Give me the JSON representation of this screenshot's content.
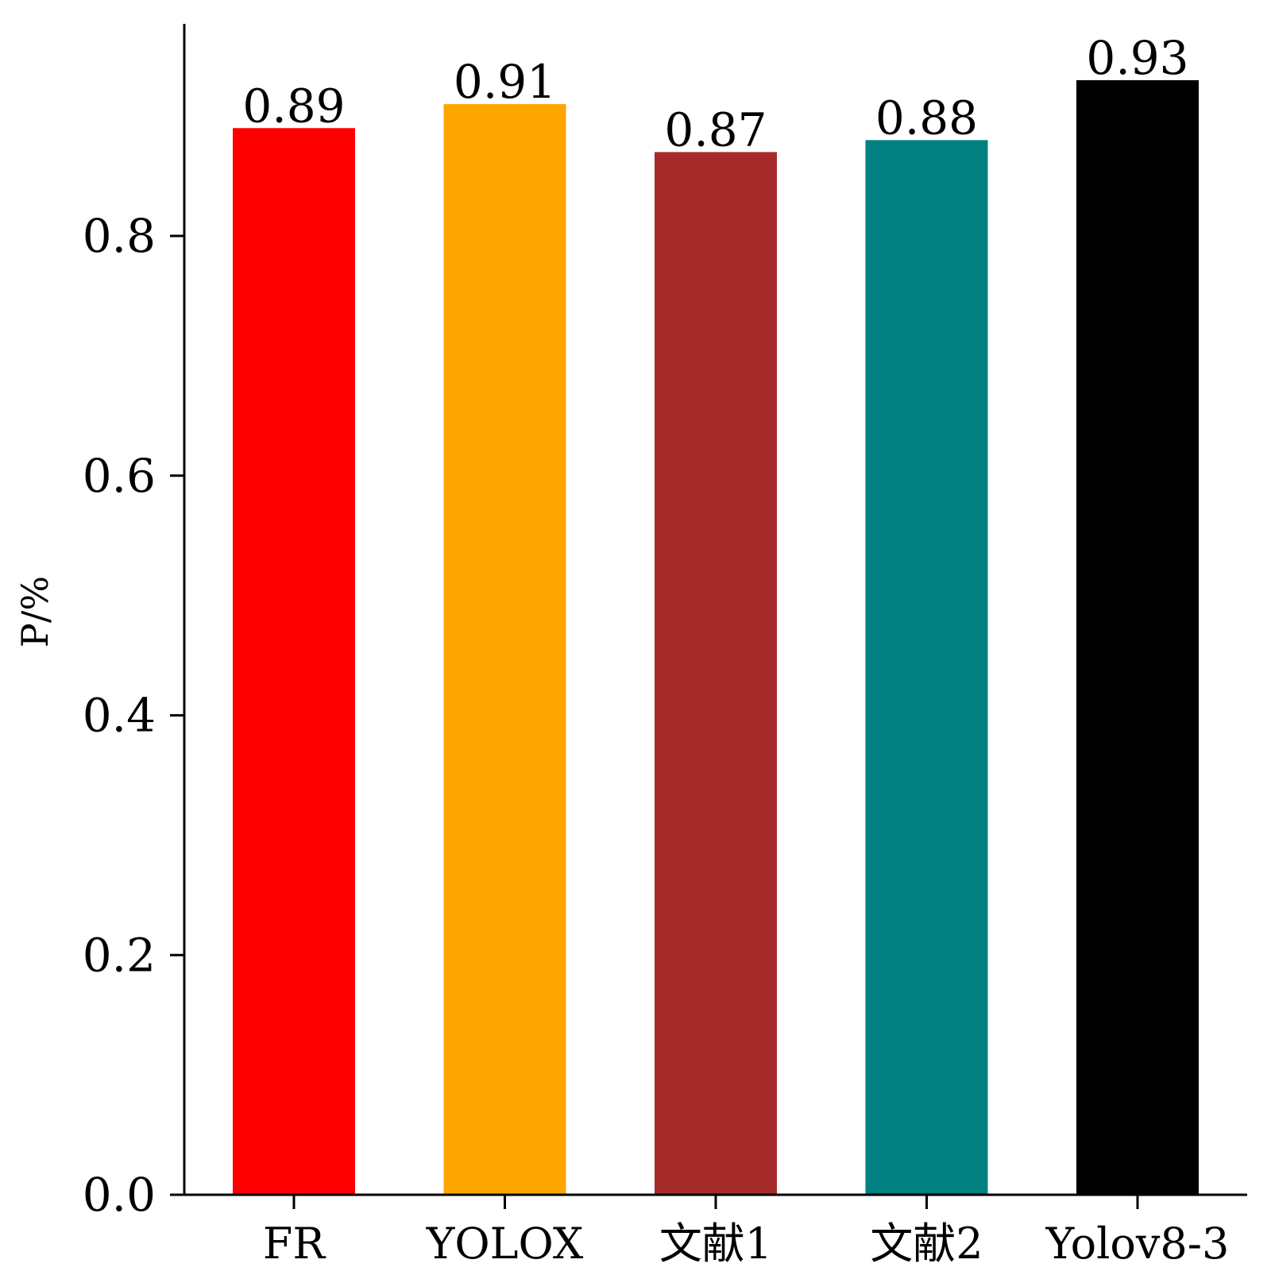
{
  "chart_data": {
    "type": "bar",
    "title": "",
    "xlabel": "",
    "ylabel": "P/%",
    "ylim": [
      0,
      0.977
    ],
    "yticks": [
      0.0,
      0.2,
      0.4,
      0.6,
      0.8
    ],
    "ytick_labels": [
      "0.0",
      "0.2",
      "0.4",
      "0.6",
      "0.8"
    ],
    "categories": [
      "FR",
      "YOLOX",
      "文献1",
      "文献2",
      "Yolov8-3"
    ],
    "values": [
      0.89,
      0.91,
      0.87,
      0.88,
      0.93
    ],
    "value_labels": [
      "0.89",
      "0.91",
      "0.87",
      "0.88",
      "0.93"
    ],
    "colors": [
      "#ff0000",
      "#ffa500",
      "#a52a2a",
      "#008080",
      "#000000"
    ],
    "grid": false,
    "legend": "none"
  }
}
